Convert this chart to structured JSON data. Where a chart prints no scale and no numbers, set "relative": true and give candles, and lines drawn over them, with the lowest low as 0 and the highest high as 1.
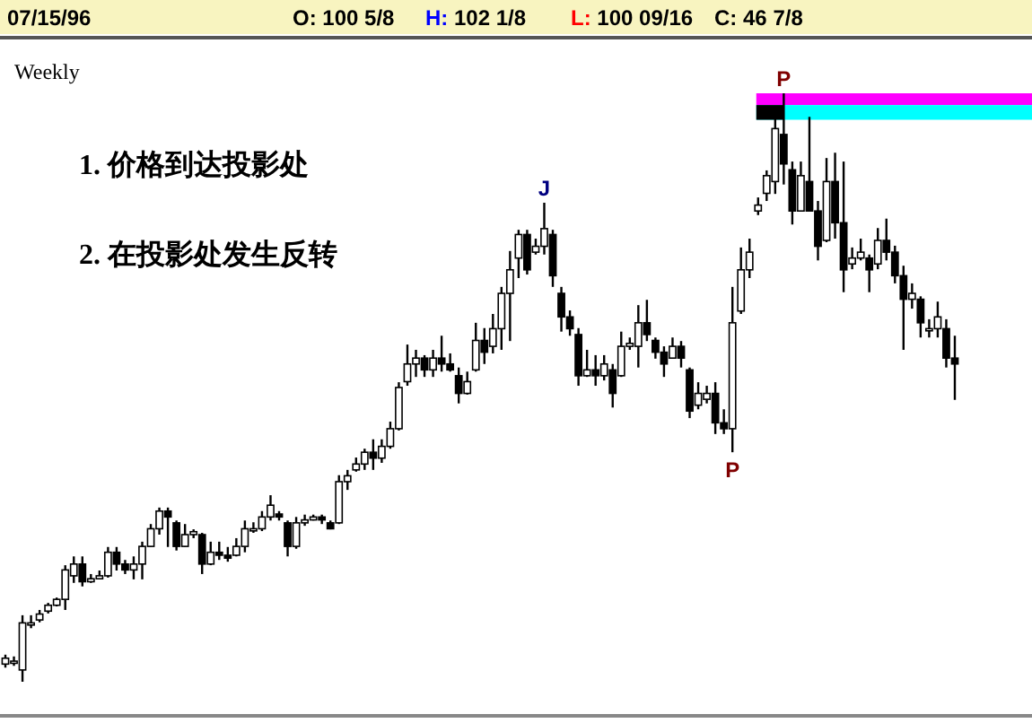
{
  "chart_data": {
    "type": "candlestick",
    "relative": true,
    "title": "Weekly",
    "categories": [
      null,
      null,
      null,
      null,
      null,
      null,
      null,
      null,
      null,
      null,
      null,
      null,
      null,
      null,
      null,
      null,
      null,
      null,
      null,
      null,
      null,
      null,
      null,
      null,
      null,
      null,
      null,
      null,
      null,
      null,
      null,
      null,
      null,
      null,
      null,
      null,
      null,
      null,
      null,
      null,
      null,
      null,
      null,
      null,
      null,
      null,
      null,
      null,
      null,
      null,
      null,
      null,
      null,
      null,
      null,
      null,
      null,
      null,
      null,
      null,
      null,
      null,
      null,
      null,
      null,
      null,
      null,
      null,
      null,
      null,
      null,
      null,
      null,
      null,
      null,
      null,
      null,
      null,
      null,
      null,
      null,
      null,
      null,
      null,
      null,
      null,
      null,
      null,
      null,
      null,
      null,
      null,
      null,
      null,
      null,
      null,
      null,
      null,
      null,
      null,
      null,
      null,
      null,
      null,
      null,
      null,
      null,
      null,
      null,
      null,
      null,
      null
    ],
    "ohlc": [
      [
        0.03,
        0.046,
        0.024,
        0.04
      ],
      [
        0.035,
        0.043,
        0.027,
        0.035
      ],
      [
        0.02,
        0.113,
        0,
        0.1
      ],
      [
        0.1,
        0.113,
        0.091,
        0.1
      ],
      [
        0.105,
        0.122,
        0.101,
        0.115
      ],
      [
        0.12,
        0.134,
        0.116,
        0.13
      ],
      [
        0.13,
        0.143,
        0.128,
        0.14
      ],
      [
        0.14,
        0.198,
        0.122,
        0.19
      ],
      [
        0.18,
        0.213,
        0.168,
        0.2
      ],
      [
        0.2,
        0.213,
        0.162,
        0.17
      ],
      [
        0.17,
        0.183,
        0.168,
        0.175
      ],
      [
        0.175,
        0.189,
        0.174,
        0.18
      ],
      [
        0.18,
        0.229,
        0.177,
        0.22
      ],
      [
        0.22,
        0.229,
        0.189,
        0.2
      ],
      [
        0.2,
        0.207,
        0.183,
        0.19
      ],
      [
        0.19,
        0.213,
        0.174,
        0.2
      ],
      [
        0.2,
        0.238,
        0.174,
        0.23
      ],
      [
        0.23,
        0.268,
        0.229,
        0.26
      ],
      [
        0.26,
        0.296,
        0.25,
        0.29
      ],
      [
        0.29,
        0.296,
        0.229,
        0.28
      ],
      [
        0.27,
        0.274,
        0.223,
        0.23
      ],
      [
        0.23,
        0.268,
        0.229,
        0.25
      ],
      [
        0.25,
        0.259,
        0.244,
        0.255
      ],
      [
        0.25,
        0.253,
        0.183,
        0.2
      ],
      [
        0.2,
        0.238,
        0.198,
        0.22
      ],
      [
        0.22,
        0.238,
        0.207,
        0.215
      ],
      [
        0.215,
        0.229,
        0.204,
        0.21
      ],
      [
        0.215,
        0.244,
        0.213,
        0.23
      ],
      [
        0.23,
        0.274,
        0.22,
        0.26
      ],
      [
        0.26,
        0.271,
        0.253,
        0.26
      ],
      [
        0.26,
        0.29,
        0.256,
        0.28
      ],
      [
        0.28,
        0.317,
        0.274,
        0.3
      ],
      [
        0.285,
        0.29,
        0.274,
        0.28
      ],
      [
        0.27,
        0.274,
        0.213,
        0.23
      ],
      [
        0.23,
        0.28,
        0.226,
        0.27
      ],
      [
        0.27,
        0.284,
        0.265,
        0.275
      ],
      [
        0.275,
        0.284,
        0.274,
        0.28
      ],
      [
        0.28,
        0.284,
        0.268,
        0.275
      ],
      [
        0.27,
        0.274,
        0.259,
        0.26
      ],
      [
        0.27,
        0.351,
        0.268,
        0.34
      ],
      [
        0.34,
        0.36,
        0.326,
        0.35
      ],
      [
        0.36,
        0.381,
        0.357,
        0.37
      ],
      [
        0.37,
        0.396,
        0.36,
        0.39
      ],
      [
        0.39,
        0.412,
        0.36,
        0.38
      ],
      [
        0.38,
        0.412,
        0.372,
        0.4
      ],
      [
        0.4,
        0.442,
        0.396,
        0.43
      ],
      [
        0.43,
        0.509,
        0.427,
        0.5
      ],
      [
        0.51,
        0.573,
        0.503,
        0.54
      ],
      [
        0.54,
        0.564,
        0.518,
        0.55
      ],
      [
        0.55,
        0.555,
        0.518,
        0.53
      ],
      [
        0.53,
        0.564,
        0.518,
        0.55
      ],
      [
        0.55,
        0.588,
        0.527,
        0.54
      ],
      [
        0.54,
        0.558,
        0.527,
        0.53
      ],
      [
        0.52,
        0.534,
        0.473,
        0.49
      ],
      [
        0.49,
        0.527,
        0.488,
        0.51
      ],
      [
        0.53,
        0.61,
        0.527,
        0.58
      ],
      [
        0.58,
        0.601,
        0.54,
        0.56
      ],
      [
        0.57,
        0.625,
        0.558,
        0.6
      ],
      [
        0.6,
        0.671,
        0.564,
        0.66
      ],
      [
        0.66,
        0.732,
        0.579,
        0.7
      ],
      [
        0.72,
        0.768,
        0.686,
        0.76
      ],
      [
        0.76,
        0.768,
        0.692,
        0.7
      ],
      [
        0.73,
        0.753,
        0.726,
        0.74
      ],
      [
        0.74,
        0.814,
        0.726,
        0.77
      ],
      [
        0.76,
        0.768,
        0.671,
        0.69
      ],
      [
        0.66,
        0.671,
        0.595,
        0.62
      ],
      [
        0.62,
        0.631,
        0.588,
        0.6
      ],
      [
        0.59,
        0.601,
        0.503,
        0.52
      ],
      [
        0.52,
        0.564,
        0.518,
        0.53
      ],
      [
        0.53,
        0.555,
        0.503,
        0.52
      ],
      [
        0.52,
        0.555,
        0.512,
        0.54
      ],
      [
        0.53,
        0.54,
        0.466,
        0.49
      ],
      [
        0.52,
        0.595,
        0.518,
        0.57
      ],
      [
        0.57,
        0.585,
        0.564,
        0.575
      ],
      [
        0.57,
        0.64,
        0.534,
        0.61
      ],
      [
        0.61,
        0.649,
        0.579,
        0.59
      ],
      [
        0.58,
        0.585,
        0.549,
        0.56
      ],
      [
        0.56,
        0.57,
        0.518,
        0.54
      ],
      [
        0.55,
        0.585,
        0.549,
        0.57
      ],
      [
        0.57,
        0.579,
        0.534,
        0.55
      ],
      [
        0.53,
        0.534,
        0.448,
        0.46
      ],
      [
        0.47,
        0.509,
        0.463,
        0.49
      ],
      [
        0.48,
        0.503,
        0.473,
        0.49
      ],
      [
        0.49,
        0.509,
        0.421,
        0.44
      ],
      [
        0.44,
        0.463,
        0.421,
        0.43
      ],
      [
        0.43,
        0.671,
        0.39,
        0.61
      ],
      [
        0.63,
        0.738,
        0.625,
        0.7
      ],
      [
        0.7,
        0.753,
        0.686,
        0.73
      ],
      [
        0.8,
        0.823,
        0.793,
        0.81
      ],
      [
        0.83,
        0.869,
        0.817,
        0.86
      ],
      [
        0.85,
        0.966,
        0.829,
        0.94
      ],
      [
        0.93,
        1,
        0.845,
        0.88
      ],
      [
        0.87,
        0.884,
        0.777,
        0.8
      ],
      [
        0.8,
        0.884,
        0.799,
        0.86
      ],
      [
        0.85,
        0.96,
        0.799,
        0.8
      ],
      [
        0.8,
        0.817,
        0.716,
        0.74
      ],
      [
        0.75,
        0.89,
        0.747,
        0.85
      ],
      [
        0.85,
        0.899,
        0.753,
        0.78
      ],
      [
        0.78,
        0.884,
        0.662,
        0.7
      ],
      [
        0.71,
        0.738,
        0.701,
        0.72
      ],
      [
        0.72,
        0.753,
        0.716,
        0.73
      ],
      [
        0.72,
        0.726,
        0.662,
        0.7
      ],
      [
        0.71,
        0.771,
        0.701,
        0.75
      ],
      [
        0.75,
        0.787,
        0.716,
        0.73
      ],
      [
        0.73,
        0.741,
        0.677,
        0.69
      ],
      [
        0.69,
        0.707,
        0.564,
        0.65
      ],
      [
        0.65,
        0.677,
        0.634,
        0.66
      ],
      [
        0.65,
        0.655,
        0.585,
        0.61
      ],
      [
        0.6,
        0.616,
        0.585,
        0.6
      ],
      [
        0.6,
        0.646,
        0.585,
        0.62
      ],
      [
        0.6,
        0.616,
        0.534,
        0.55
      ],
      [
        0.55,
        0.588,
        0.479,
        0.54
      ]
    ],
    "color": "#000000",
    "bands": [
      {
        "axis": "y",
        "from": 0.98,
        "to": 1,
        "color": "#ff00ff"
      },
      {
        "axis": "y",
        "from": 0.955,
        "to": 0.98,
        "color": "#00ffff"
      }
    ],
    "annotations": [
      "07/15/96",
      "O: 100 5/8",
      "H: 102 1/8",
      "L: 100 09/16",
      "C: 46 7/8",
      "1. 价格到达投影处",
      "2. 在投影处发生反转",
      {
        "text": "J",
        "y": 0.814
      },
      {
        "text": "P",
        "y": 0.39
      },
      {
        "text": "P",
        "y": 1
      }
    ]
  }
}
